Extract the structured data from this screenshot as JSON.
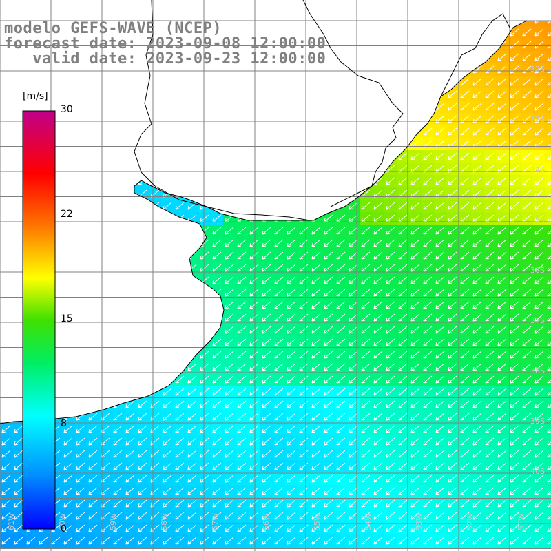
{
  "header": {
    "title": "modelo GEFS-WAVE (NCEP)",
    "forecast_date": "forecast date: 2023-09-08 12:00:00",
    "valid_date": "valid date: 2023-09-23 12:00:00"
  },
  "colorbar": {
    "unit": "[m/s]",
    "ticks": [
      "30",
      "22",
      "15",
      "8",
      "0"
    ],
    "tick_values": [
      30,
      22,
      15,
      8,
      0
    ],
    "min": 0,
    "max": 30,
    "colors": [
      "#0000ff",
      "#00a0ff",
      "#00ffff",
      "#00e000",
      "#ffff00",
      "#ff8000",
      "#ff0000",
      "#c00080"
    ]
  },
  "latitude_labels": [
    "32S",
    "33S",
    "34S",
    "35S",
    "36S",
    "37S",
    "38S",
    "39S",
    "40S"
  ],
  "longitude_labels": [
    "61W",
    "60W",
    "59W",
    "58W",
    "57W",
    "56W",
    "55W",
    "54W",
    "53W",
    "52W",
    "51W"
  ],
  "colors": {
    "land": "#ffffff",
    "grid": "#808080",
    "coast": "#000000",
    "arrows": "#ffffff",
    "header_text": "#808080"
  },
  "field": {
    "description_values": "wind speed m/s",
    "arrow_direction": "southwest"
  }
}
